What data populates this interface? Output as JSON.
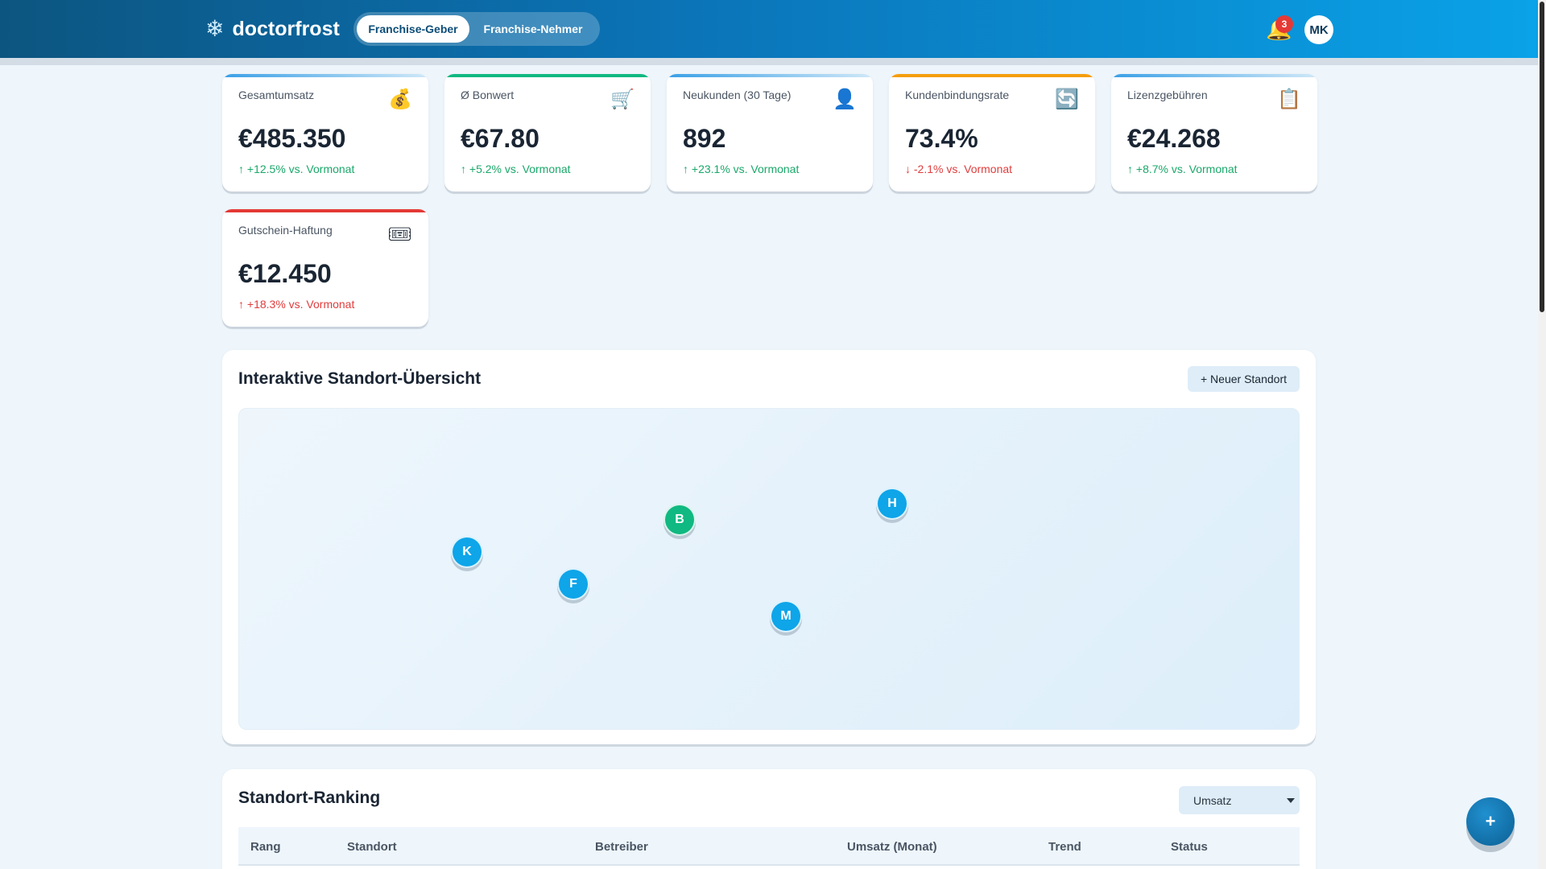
{
  "header": {
    "logo_glyph": "❄",
    "brand": "doctorfrost",
    "modes": [
      "Franchise-Geber",
      "Franchise-Nehmer"
    ],
    "active_mode": "Franchise-Geber",
    "notification_count": "3",
    "avatar_initials": "MK"
  },
  "kpis": [
    {
      "label": "Gesamtumsatz",
      "icon": "💰",
      "icon_name": "money-bag-icon",
      "value": "€485.350",
      "change": "↑ +12.5% vs. Vormonat",
      "trend": "positive",
      "accent": "#3aa0e6"
    },
    {
      "label": "Ø Bonwert",
      "icon": "🛒",
      "icon_name": "cart-icon",
      "value": "€67.80",
      "change": "↑ +5.2% vs. Vormonat",
      "trend": "positive",
      "accent": "#10b981"
    },
    {
      "label": "Neukunden (30 Tage)",
      "icon": "👤",
      "icon_name": "user-icon",
      "value": "892",
      "change": "↑ +23.1% vs. Vormonat",
      "trend": "positive",
      "accent": "#3aa0e6"
    },
    {
      "label": "Kundenbindungsrate",
      "icon": "🔄",
      "icon_name": "refresh-icon",
      "value": "73.4%",
      "change": "↓ -2.1% vs. Vormonat",
      "trend": "negative",
      "accent": "#f59e0b"
    },
    {
      "label": "Lizenzgebühren",
      "icon": "📋",
      "icon_name": "clipboard-icon",
      "value": "€24.268",
      "change": "↑ +8.7% vs. Vormonat",
      "trend": "positive",
      "accent": "#3aa0e6"
    },
    {
      "label": "Gutschein-Haftung",
      "icon": "🎟",
      "icon_name": "ticket-icon",
      "value": "€12.450",
      "change": "↑ +18.3% vs. Vormonat",
      "trend": "negative",
      "accent": "#e53935"
    }
  ],
  "map": {
    "title": "Interaktive Standort-Übersicht",
    "new_button": "+ Neuer Standort",
    "pins": [
      {
        "label": "K",
        "color": "blue"
      },
      {
        "label": "F",
        "color": "blue"
      },
      {
        "label": "B",
        "color": "green"
      },
      {
        "label": "M",
        "color": "blue"
      },
      {
        "label": "H",
        "color": "blue"
      }
    ]
  },
  "ranking": {
    "title": "Standort-Ranking",
    "sort_value": "Umsatz",
    "columns": [
      "Rang",
      "Standort",
      "Betreiber",
      "Umsatz (Monat)",
      "Trend",
      "Status"
    ]
  },
  "fab_label": "+"
}
